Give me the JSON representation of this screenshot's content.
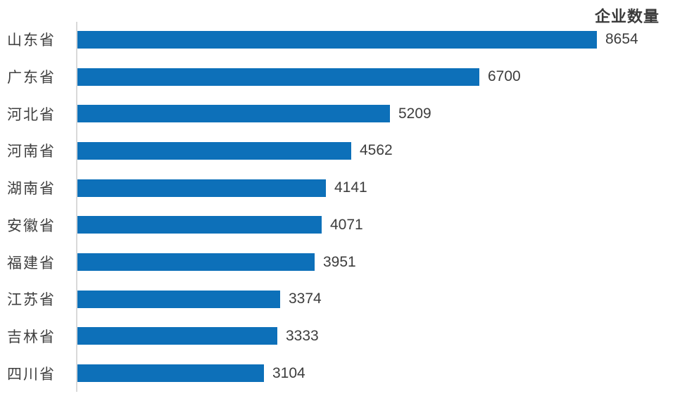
{
  "chart_data": {
    "type": "bar",
    "orientation": "horizontal",
    "title": "企业数量",
    "categories": [
      "山东省",
      "广东省",
      "河北省",
      "河南省",
      "湖南省",
      "安徽省",
      "福建省",
      "江苏省",
      "吉林省",
      "四川省"
    ],
    "values": [
      8654,
      6700,
      5209,
      4562,
      4141,
      4071,
      3951,
      3374,
      3333,
      3104
    ],
    "xlim": [
      0,
      8654
    ],
    "grid": false,
    "legend": false,
    "value_labels_shown": true,
    "bar_color": "#0d70b9",
    "axis_line_color": "#d9d9d9",
    "category_label_color": "#3f3f3f",
    "value_label_color": "#3d3d3d",
    "title_color": "#3a3a3a",
    "background_color": "#ffffff"
  }
}
